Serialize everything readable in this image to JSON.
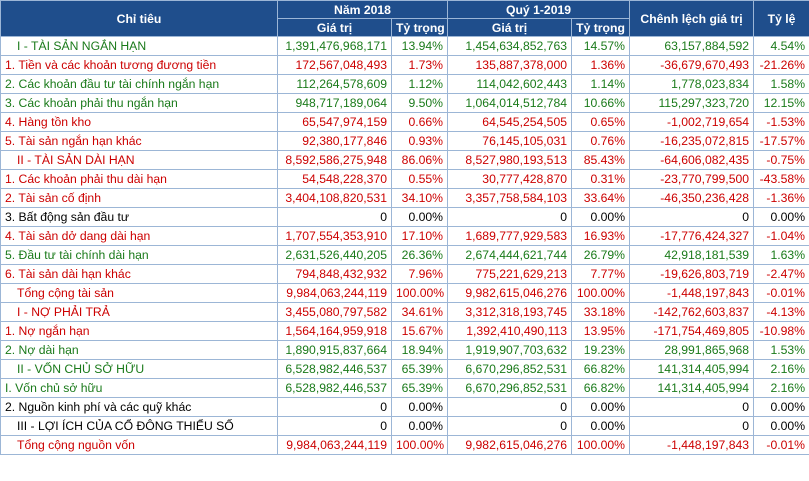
{
  "headers": {
    "chi_tieu": "Chỉ tiêu",
    "nam_2018": "Năm 2018",
    "quy_1_2019": "Quý 1-2019",
    "chenh_lech": "Chênh lệch giá trị",
    "ty_le": "Tỷ lệ",
    "gia_tri": "Giá trị",
    "ty_trong": "Tỷ trọng"
  },
  "rows": [
    {
      "name": "I - TÀI SẢN NGẮN HẠN",
      "v2018": "1,391,476,968,171",
      "p2018": "13.94%",
      "v2019": "1,454,634,852,763",
      "p2019": "14.57%",
      "diff": "63,157,884,592",
      "rate": "4.54%",
      "color": "green",
      "indent": true
    },
    {
      "name": "1. Tiền và các khoản tương đương tiền",
      "v2018": "172,567,048,493",
      "p2018": "1.73%",
      "v2019": "135,887,378,000",
      "p2019": "1.36%",
      "diff": "-36,679,670,493",
      "rate": "-21.26%",
      "color": "red",
      "indent": false
    },
    {
      "name": "2. Các khoản đầu tư tài chính ngắn hạn",
      "v2018": "112,264,578,609",
      "p2018": "1.12%",
      "v2019": "114,042,602,443",
      "p2019": "1.14%",
      "diff": "1,778,023,834",
      "rate": "1.58%",
      "color": "green",
      "indent": false
    },
    {
      "name": "3. Các khoản phải thu ngắn hạn",
      "v2018": "948,717,189,064",
      "p2018": "9.50%",
      "v2019": "1,064,014,512,784",
      "p2019": "10.66%",
      "diff": "115,297,323,720",
      "rate": "12.15%",
      "color": "green",
      "indent": false
    },
    {
      "name": "4. Hàng tồn kho",
      "v2018": "65,547,974,159",
      "p2018": "0.66%",
      "v2019": "64,545,254,505",
      "p2019": "0.65%",
      "diff": "-1,002,719,654",
      "rate": "-1.53%",
      "color": "red",
      "indent": false
    },
    {
      "name": "5. Tài sản ngắn hạn khác",
      "v2018": "92,380,177,846",
      "p2018": "0.93%",
      "v2019": "76,145,105,031",
      "p2019": "0.76%",
      "diff": "-16,235,072,815",
      "rate": "-17.57%",
      "color": "red",
      "indent": false
    },
    {
      "name": "II - TÀI SẢN DÀI HẠN",
      "v2018": "8,592,586,275,948",
      "p2018": "86.06%",
      "v2019": "8,527,980,193,513",
      "p2019": "85.43%",
      "diff": "-64,606,082,435",
      "rate": "-0.75%",
      "color": "red",
      "indent": true
    },
    {
      "name": "1. Các khoản phải thu dài hạn",
      "v2018": "54,548,228,370",
      "p2018": "0.55%",
      "v2019": "30,777,428,870",
      "p2019": "0.31%",
      "diff": "-23,770,799,500",
      "rate": "-43.58%",
      "color": "red",
      "indent": false
    },
    {
      "name": "2. Tài sản cố định",
      "v2018": "3,404,108,820,531",
      "p2018": "34.10%",
      "v2019": "3,357,758,584,103",
      "p2019": "33.64%",
      "diff": "-46,350,236,428",
      "rate": "-1.36%",
      "color": "red",
      "indent": false
    },
    {
      "name": "3. Bất động sản đầu tư",
      "v2018": "0",
      "p2018": "0.00%",
      "v2019": "0",
      "p2019": "0.00%",
      "diff": "0",
      "rate": "0.00%",
      "color": "black",
      "indent": false
    },
    {
      "name": "4. Tài sản dở dang dài hạn",
      "v2018": "1,707,554,353,910",
      "p2018": "17.10%",
      "v2019": "1,689,777,929,583",
      "p2019": "16.93%",
      "diff": "-17,776,424,327",
      "rate": "-1.04%",
      "color": "red",
      "indent": false
    },
    {
      "name": "5. Đầu tư tài chính dài hạn",
      "v2018": "2,631,526,440,205",
      "p2018": "26.36%",
      "v2019": "2,674,444,621,744",
      "p2019": "26.79%",
      "diff": "42,918,181,539",
      "rate": "1.63%",
      "color": "green",
      "indent": false
    },
    {
      "name": "6. Tài sản dài hạn khác",
      "v2018": "794,848,432,932",
      "p2018": "7.96%",
      "v2019": "775,221,629,213",
      "p2019": "7.77%",
      "diff": "-19,626,803,719",
      "rate": "-2.47%",
      "color": "red",
      "indent": false
    },
    {
      "name": "Tổng cộng tài sản",
      "v2018": "9,984,063,244,119",
      "p2018": "100.00%",
      "v2019": "9,982,615,046,276",
      "p2019": "100.00%",
      "diff": "-1,448,197,843",
      "rate": "-0.01%",
      "color": "red",
      "indent": true
    },
    {
      "name": "I - NỢ PHẢI TRẢ",
      "v2018": "3,455,080,797,582",
      "p2018": "34.61%",
      "v2019": "3,312,318,193,745",
      "p2019": "33.18%",
      "diff": "-142,762,603,837",
      "rate": "-4.13%",
      "color": "red",
      "indent": true
    },
    {
      "name": "1. Nợ ngắn hạn",
      "v2018": "1,564,164,959,918",
      "p2018": "15.67%",
      "v2019": "1,392,410,490,113",
      "p2019": "13.95%",
      "diff": "-171,754,469,805",
      "rate": "-10.98%",
      "color": "red",
      "indent": false
    },
    {
      "name": "2. Nợ dài hạn",
      "v2018": "1,890,915,837,664",
      "p2018": "18.94%",
      "v2019": "1,919,907,703,632",
      "p2019": "19.23%",
      "diff": "28,991,865,968",
      "rate": "1.53%",
      "color": "green",
      "indent": false
    },
    {
      "name": "II - VỐN CHỦ SỞ HỮU",
      "v2018": "6,528,982,446,537",
      "p2018": "65.39%",
      "v2019": "6,670,296,852,531",
      "p2019": "66.82%",
      "diff": "141,314,405,994",
      "rate": "2.16%",
      "color": "green",
      "indent": true
    },
    {
      "name": "I. Vốn chủ sở hữu",
      "v2018": "6,528,982,446,537",
      "p2018": "65.39%",
      "v2019": "6,670,296,852,531",
      "p2019": "66.82%",
      "diff": "141,314,405,994",
      "rate": "2.16%",
      "color": "green",
      "indent": false
    },
    {
      "name": "2. Nguồn kinh phí và các quỹ khác",
      "v2018": "0",
      "p2018": "0.00%",
      "v2019": "0",
      "p2019": "0.00%",
      "diff": "0",
      "rate": "0.00%",
      "color": "black",
      "indent": false
    },
    {
      "name": "III - LỢI ÍCH CỦA CỔ ĐÔNG THIỂU SỐ",
      "v2018": "0",
      "p2018": "0.00%",
      "v2019": "0",
      "p2019": "0.00%",
      "diff": "0",
      "rate": "0.00%",
      "color": "black",
      "indent": true
    },
    {
      "name": "Tổng cộng nguồn vốn",
      "v2018": "9,984,063,244,119",
      "p2018": "100.00%",
      "v2019": "9,982,615,046,276",
      "p2019": "100.00%",
      "diff": "-1,448,197,843",
      "rate": "-0.01%",
      "color": "red",
      "indent": true
    }
  ],
  "colors": {
    "header_bg": "#1f4e8c",
    "header_text": "#ffffff",
    "positive": "#1a7a1a",
    "negative": "#cc0000",
    "neutral": "#000000",
    "grid": "#9cb6d6"
  }
}
